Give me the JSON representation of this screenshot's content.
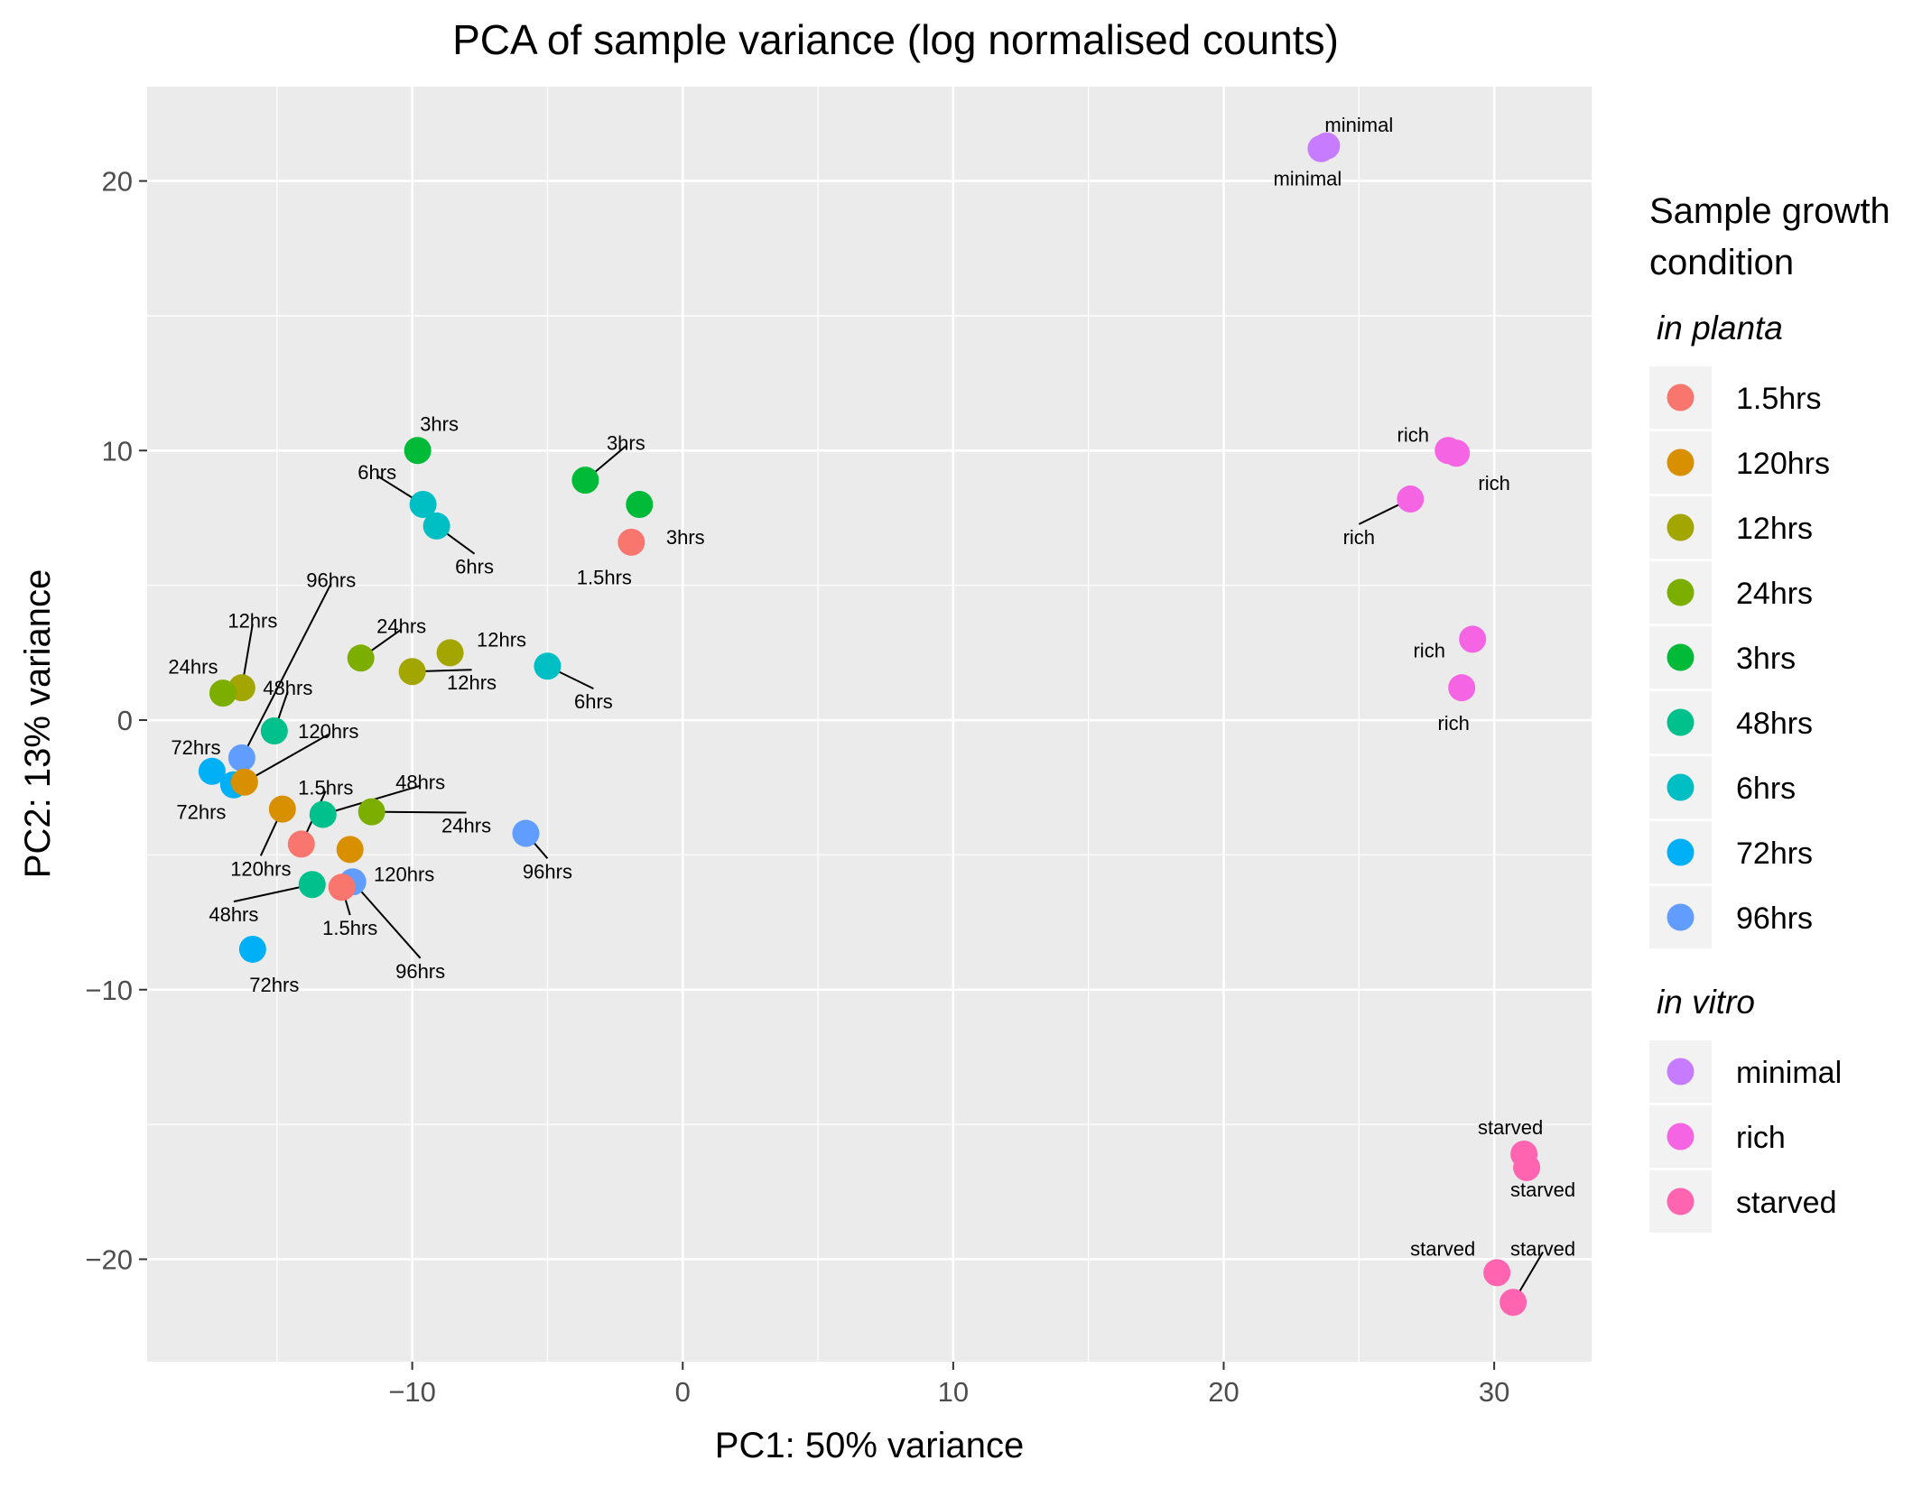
{
  "chart_data": {
    "type": "scatter",
    "title": "PCA of sample variance (log normalised counts)",
    "xlabel": "PC1: 50% variance",
    "ylabel": "PC2: 13% variance",
    "xlim": [
      -19.8,
      33.6
    ],
    "ylim": [
      -23.8,
      23.5
    ],
    "x_ticks": [
      -10,
      0,
      10,
      20,
      30
    ],
    "y_ticks": [
      -20,
      -10,
      0,
      10,
      20
    ],
    "x_tick_labels": [
      "−10",
      "0",
      "10",
      "20",
      "30"
    ],
    "y_tick_labels": [
      "−20",
      "−10",
      "0",
      "10",
      "20"
    ],
    "grid": true,
    "legend": {
      "title_lines": [
        "Sample growth",
        "condition"
      ],
      "placement": "right",
      "groups": [
        {
          "name": "in planta",
          "items": [
            "1.5hrs",
            "120hrs",
            "12hrs",
            "24hrs",
            "3hrs",
            "48hrs",
            "6hrs",
            "72hrs",
            "96hrs"
          ]
        },
        {
          "name": "in vitro",
          "items": [
            "minimal",
            "rich",
            "starved"
          ]
        }
      ]
    },
    "colors": {
      "1.5hrs": "#F8766D",
      "120hrs": "#D89000",
      "12hrs": "#A3A500",
      "24hrs": "#7CAE00",
      "3hrs": "#00BA38",
      "48hrs": "#00C08B",
      "6hrs": "#00BFC4",
      "72hrs": "#00B0F6",
      "96hrs": "#619CFF",
      "minimal": "#C77CFF",
      "rich": "#F564E3",
      "starved": "#FF64B0"
    },
    "points": [
      {
        "x": -9.8,
        "y": 10.0,
        "group": "3hrs",
        "label": "3hrs",
        "lx": -9.0,
        "ly": 11.0,
        "line": false
      },
      {
        "x": -3.6,
        "y": 8.9,
        "group": "3hrs",
        "label": "3hrs",
        "lx": -2.1,
        "ly": 10.3,
        "line": true
      },
      {
        "x": -1.6,
        "y": 8.0,
        "group": "3hrs",
        "label": "3hrs",
        "lx": 0.1,
        "ly": 6.8,
        "line": false
      },
      {
        "x": -9.6,
        "y": 8.0,
        "group": "6hrs",
        "label": "6hrs",
        "lx": -11.3,
        "ly": 9.2,
        "line": true
      },
      {
        "x": -9.1,
        "y": 7.2,
        "group": "6hrs",
        "label": "6hrs",
        "lx": -7.7,
        "ly": 5.7,
        "line": true
      },
      {
        "x": -5.0,
        "y": 2.0,
        "group": "6hrs",
        "label": "6hrs",
        "lx": -3.3,
        "ly": 0.7,
        "line": true
      },
      {
        "x": -1.9,
        "y": 6.6,
        "group": "1.5hrs",
        "label": "1.5hrs",
        "lx": -2.9,
        "ly": 5.3,
        "line": false
      },
      {
        "x": -16.3,
        "y": 1.2,
        "group": "12hrs",
        "label": "12hrs",
        "lx": -15.9,
        "ly": 3.7,
        "line": true
      },
      {
        "x": -10.0,
        "y": 1.8,
        "group": "12hrs",
        "label": "12hrs",
        "lx": -7.8,
        "ly": 1.4,
        "line": true
      },
      {
        "x": -8.6,
        "y": 2.5,
        "group": "12hrs",
        "label": "12hrs",
        "lx": -6.7,
        "ly": 3.0,
        "line": false
      },
      {
        "x": -17.0,
        "y": 1.0,
        "group": "24hrs",
        "label": "24hrs",
        "lx": -18.1,
        "ly": 2.0,
        "line": false
      },
      {
        "x": -11.9,
        "y": 2.3,
        "group": "24hrs",
        "label": "24hrs",
        "lx": -10.4,
        "ly": 3.5,
        "line": true
      },
      {
        "x": -11.5,
        "y": -3.4,
        "group": "24hrs",
        "label": "24hrs",
        "lx": -8.0,
        "ly": -3.9,
        "line": true
      },
      {
        "x": -15.1,
        "y": -0.4,
        "group": "48hrs",
        "label": "48hrs",
        "lx": -14.6,
        "ly": 1.2,
        "line": true
      },
      {
        "x": -13.3,
        "y": -3.5,
        "group": "48hrs",
        "label": "48hrs",
        "lx": -9.7,
        "ly": -2.3,
        "line": true
      },
      {
        "x": -13.7,
        "y": -6.1,
        "group": "48hrs",
        "label": "48hrs",
        "lx": -16.6,
        "ly": -7.2,
        "line": true
      },
      {
        "x": -17.4,
        "y": -1.9,
        "group": "72hrs",
        "label": "72hrs",
        "lx": -18.0,
        "ly": -1.0,
        "line": false
      },
      {
        "x": -16.6,
        "y": -2.4,
        "group": "72hrs",
        "label": "72hrs",
        "lx": -17.8,
        "ly": -3.4,
        "line": false
      },
      {
        "x": -15.9,
        "y": -8.5,
        "group": "72hrs",
        "label": "72hrs",
        "lx": -15.1,
        "ly": -9.8,
        "line": false
      },
      {
        "x": -16.3,
        "y": -1.4,
        "group": "96hrs",
        "label": "96hrs",
        "lx": -13.0,
        "ly": 5.2,
        "line": true
      },
      {
        "x": -5.8,
        "y": -4.2,
        "group": "96hrs",
        "label": "96hrs",
        "lx": -5.0,
        "ly": -5.6,
        "line": true
      },
      {
        "x": -12.2,
        "y": -6.0,
        "group": "96hrs",
        "label": "96hrs",
        "lx": -9.7,
        "ly": -9.3,
        "line": true
      },
      {
        "x": -16.2,
        "y": -2.3,
        "group": "120hrs",
        "label": "120hrs",
        "lx": -13.1,
        "ly": -0.4,
        "line": true
      },
      {
        "x": -14.8,
        "y": -3.3,
        "group": "120hrs",
        "label": "120hrs",
        "lx": -15.6,
        "ly": -5.5,
        "line": true
      },
      {
        "x": -12.3,
        "y": -4.8,
        "group": "120hrs",
        "label": "120hrs",
        "lx": -10.3,
        "ly": -5.7,
        "line": false
      },
      {
        "x": -14.1,
        "y": -4.6,
        "group": "1.5hrs",
        "label": "1.5hrs",
        "lx": -13.2,
        "ly": -2.5,
        "line": true
      },
      {
        "x": -12.6,
        "y": -6.2,
        "group": "1.5hrs",
        "label": "1.5hrs",
        "lx": -12.3,
        "ly": -7.7,
        "line": true
      },
      {
        "x": 23.6,
        "y": 21.2,
        "group": "minimal",
        "label": "minimal",
        "lx": 23.1,
        "ly": 20.1,
        "line": false
      },
      {
        "x": 23.8,
        "y": 21.3,
        "group": "minimal",
        "label": "minimal",
        "lx": 25.0,
        "ly": 22.1,
        "line": false
      },
      {
        "x": 28.3,
        "y": 10.0,
        "group": "rich",
        "label": "rich",
        "lx": 27.0,
        "ly": 10.6,
        "line": false
      },
      {
        "x": 28.6,
        "y": 9.9,
        "group": "rich",
        "label": "rich",
        "lx": 30.0,
        "ly": 8.8,
        "line": false
      },
      {
        "x": 26.9,
        "y": 8.2,
        "group": "rich",
        "label": "rich",
        "lx": 25.0,
        "ly": 6.8,
        "line": true
      },
      {
        "x": 29.2,
        "y": 3.0,
        "group": "rich",
        "label": "rich",
        "lx": 27.6,
        "ly": 2.6,
        "line": false
      },
      {
        "x": 28.8,
        "y": 1.2,
        "group": "rich",
        "label": "rich",
        "lx": 28.5,
        "ly": -0.1,
        "line": false
      },
      {
        "x": 31.1,
        "y": -16.1,
        "group": "starved",
        "label": "starved",
        "lx": 30.6,
        "ly": -15.1,
        "line": false
      },
      {
        "x": 31.2,
        "y": -16.6,
        "group": "starved",
        "label": "starved",
        "lx": 31.8,
        "ly": -17.4,
        "line": false
      },
      {
        "x": 30.1,
        "y": -20.5,
        "group": "starved",
        "label": "starved",
        "lx": 28.1,
        "ly": -19.6,
        "line": false
      },
      {
        "x": 30.7,
        "y": -21.6,
        "group": "starved",
        "label": "starved",
        "lx": 31.8,
        "ly": -19.6,
        "line": true
      }
    ]
  }
}
